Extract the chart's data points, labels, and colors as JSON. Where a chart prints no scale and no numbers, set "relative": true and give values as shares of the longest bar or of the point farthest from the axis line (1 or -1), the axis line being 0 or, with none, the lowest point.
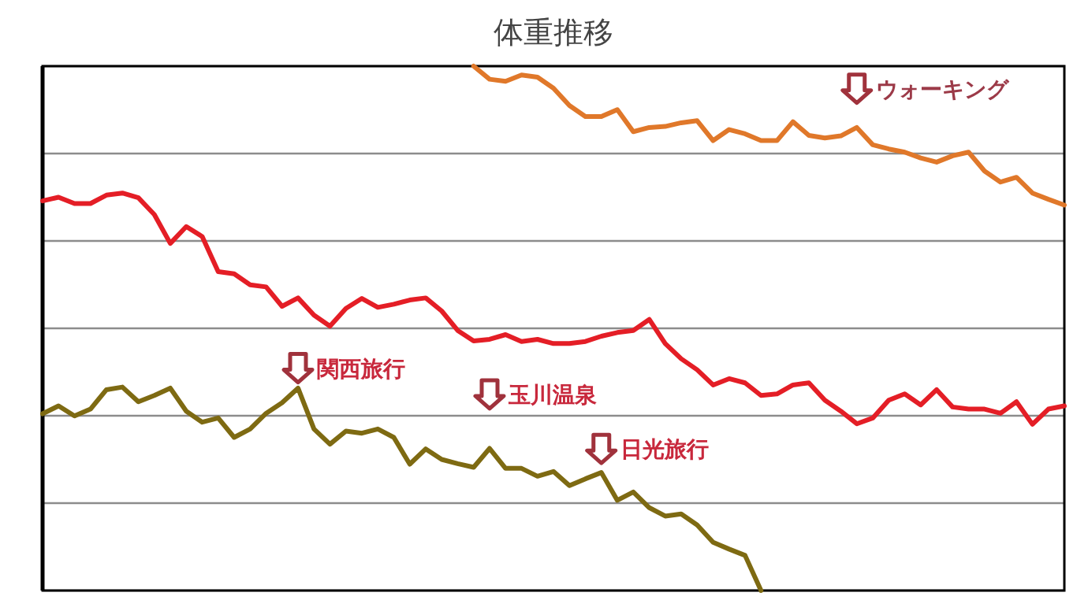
{
  "chart_data": {
    "type": "line",
    "title": "体重推移",
    "categories": [
      null,
      null,
      null,
      null,
      null,
      null,
      null,
      null,
      null,
      null,
      null,
      null,
      null,
      null,
      null,
      null,
      null,
      null,
      null,
      null,
      null,
      null,
      null,
      null,
      null,
      null,
      null,
      null,
      null,
      null,
      null,
      null,
      null,
      null,
      null,
      null,
      null,
      null,
      null,
      null,
      null,
      null,
      null,
      null,
      null,
      null,
      null,
      null,
      null,
      null,
      null,
      null,
      null,
      null,
      null,
      null,
      null,
      null,
      null,
      null,
      null,
      null,
      null,
      null,
      null
    ],
    "relative": true,
    "series": [
      {
        "color": "#e0782a",
        "values": [
          null,
          null,
          null,
          null,
          null,
          null,
          null,
          null,
          null,
          null,
          null,
          null,
          null,
          null,
          null,
          null,
          null,
          null,
          null,
          null,
          null,
          null,
          null,
          null,
          null,
          null,
          null,
          1,
          0.975,
          0.971,
          0.983,
          0.979,
          0.958,
          0.925,
          0.904,
          0.904,
          0.917,
          0.875,
          0.883,
          0.885,
          0.892,
          0.896,
          0.858,
          0.879,
          0.871,
          0.858,
          0.858,
          0.894,
          0.868,
          0.863,
          0.867,
          0.883,
          0.85,
          0.842,
          0.836,
          0.825,
          0.817,
          0.829,
          0.836,
          0.8,
          0.779,
          0.788,
          0.758,
          0.746,
          0.735
        ]
      },
      {
        "color": "#e41e26",
        "values": [
          0.743,
          0.75,
          0.738,
          0.738,
          0.754,
          0.758,
          0.749,
          0.717,
          0.662,
          0.694,
          0.675,
          0.608,
          0.604,
          0.583,
          0.579,
          0.542,
          0.558,
          0.525,
          0.504,
          0.538,
          0.557,
          0.54,
          0.546,
          0.554,
          0.558,
          0.533,
          0.496,
          0.476,
          0.479,
          0.488,
          0.475,
          0.479,
          0.471,
          0.471,
          0.475,
          0.485,
          0.492,
          0.496,
          0.517,
          0.471,
          0.442,
          0.421,
          0.392,
          0.404,
          0.396,
          0.372,
          0.375,
          0.392,
          0.396,
          0.363,
          0.342,
          0.318,
          0.329,
          0.363,
          0.375,
          0.354,
          0.383,
          0.35,
          0.346,
          0.346,
          0.338,
          0.36,
          0.317,
          0.346,
          0.352
        ]
      },
      {
        "color": "#7e6a12",
        "values": [
          0.337,
          0.352,
          0.333,
          0.346,
          0.383,
          0.388,
          0.36,
          0.372,
          0.386,
          0.342,
          0.321,
          0.329,
          0.292,
          0.308,
          0.338,
          0.358,
          0.386,
          0.308,
          0.279,
          0.304,
          0.3,
          0.308,
          0.292,
          0.241,
          0.27,
          0.25,
          0.242,
          0.235,
          0.271,
          0.233,
          0.233,
          0.218,
          0.227,
          0.2,
          0.213,
          0.225,
          0.172,
          0.188,
          0.158,
          0.142,
          0.146,
          0.125,
          0.092,
          0.079,
          0.067,
          0,
          null,
          null,
          null,
          null,
          null,
          null,
          null,
          null,
          null,
          null,
          null,
          null,
          null,
          null,
          null,
          null,
          null,
          null,
          null
        ]
      }
    ],
    "grid": "y",
    "tick_labels": false,
    "annotations": [
      "関西旅行",
      "玉川温泉",
      "日光旅行",
      "ウォーキング"
    ]
  }
}
